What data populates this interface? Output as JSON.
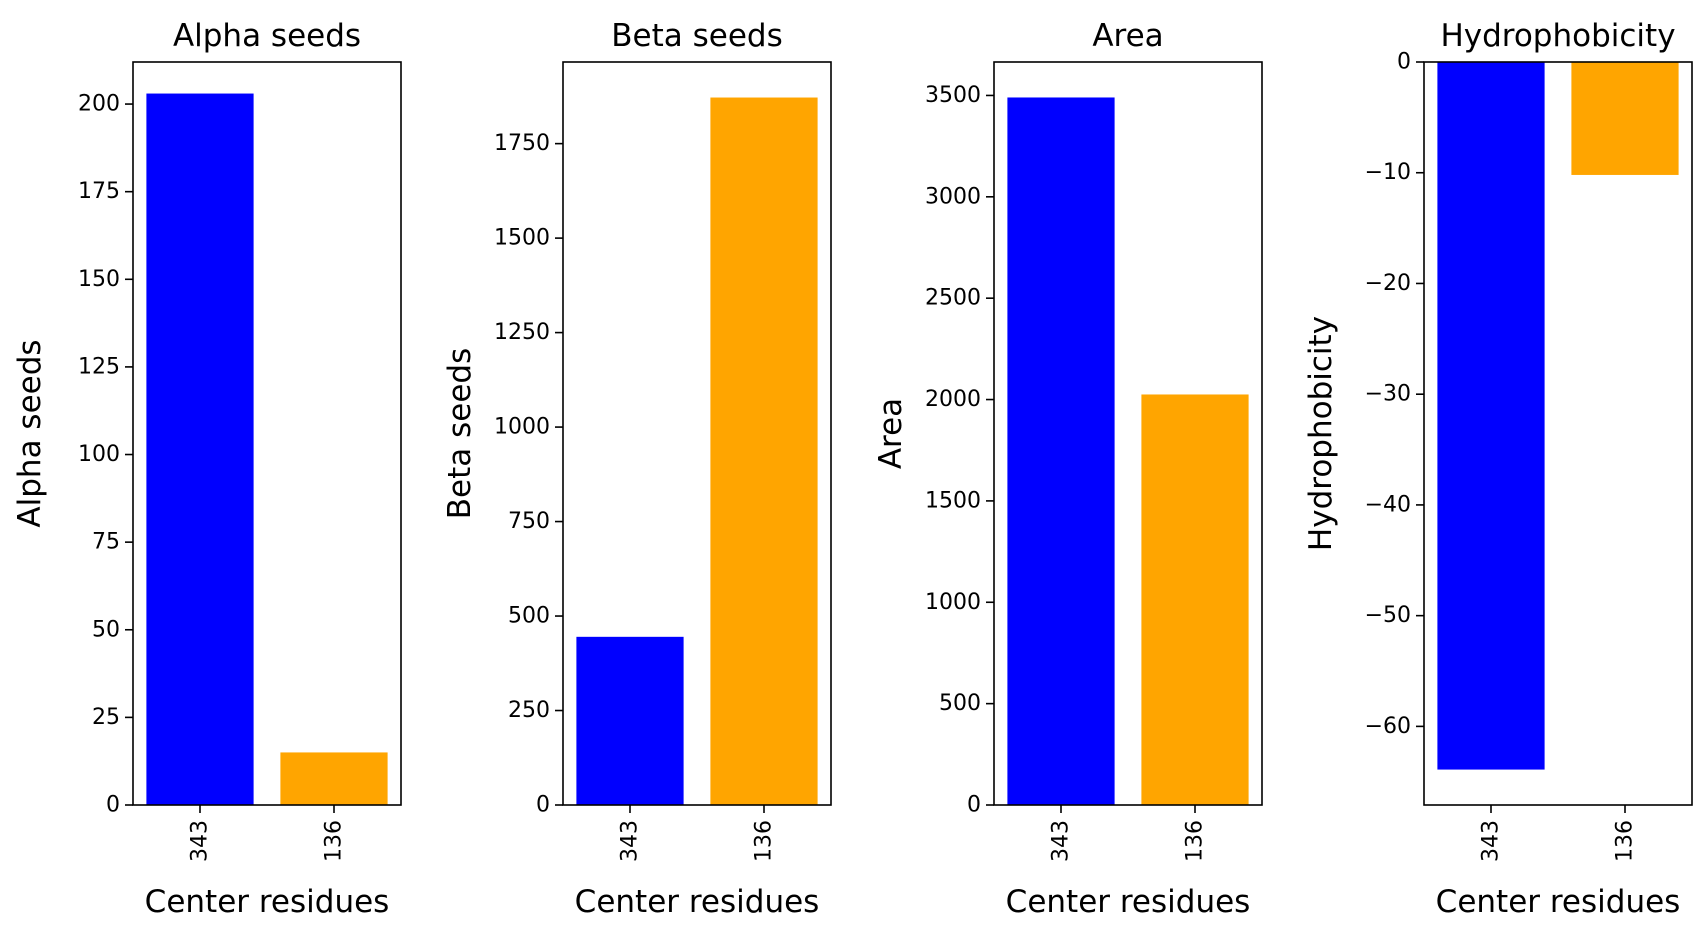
{
  "chart_data": [
    {
      "type": "bar",
      "title": "Alpha seeds",
      "xlabel": "Center residues",
      "ylabel": "Alpha seeds",
      "categories": [
        "343",
        "136"
      ],
      "values": [
        203,
        15
      ],
      "colors": [
        "#0000ff",
        "#ffa500"
      ],
      "ylim": [
        0,
        212
      ],
      "yticks": [
        0,
        25,
        50,
        75,
        100,
        125,
        150,
        175,
        200
      ],
      "yticklabels": [
        "0",
        "25",
        "50",
        "75",
        "100",
        "125",
        "150",
        "175",
        "200"
      ],
      "grid": false
    },
    {
      "type": "bar",
      "title": "Beta seeds",
      "xlabel": "Center residues",
      "ylabel": "Beta seeds",
      "categories": [
        "343",
        "136"
      ],
      "values": [
        445,
        1872
      ],
      "colors": [
        "#0000ff",
        "#ffa500"
      ],
      "ylim": [
        0,
        1966
      ],
      "yticks": [
        0,
        250,
        500,
        750,
        1000,
        1250,
        1500,
        1750
      ],
      "yticklabels": [
        "0",
        "250",
        "500",
        "750",
        "1000",
        "1250",
        "1500",
        "1750"
      ],
      "grid": false
    },
    {
      "type": "bar",
      "title": "Area",
      "xlabel": "Center residues",
      "ylabel": "Area",
      "categories": [
        "343",
        "136"
      ],
      "values": [
        3490,
        2025
      ],
      "colors": [
        "#0000ff",
        "#ffa500"
      ],
      "ylim": [
        0,
        3665
      ],
      "yticks": [
        0,
        500,
        1000,
        1500,
        2000,
        2500,
        3000,
        3500
      ],
      "yticklabels": [
        "0",
        "500",
        "1000",
        "1500",
        "2000",
        "2500",
        "3000",
        "3500"
      ],
      "grid": false
    },
    {
      "type": "bar",
      "title": "Hydrophobicity",
      "xlabel": "Center residues",
      "ylabel": "Hydrophobicity",
      "categories": [
        "343",
        "136"
      ],
      "values": [
        -63.9,
        -10.2
      ],
      "colors": [
        "#0000ff",
        "#ffa500"
      ],
      "ylim": [
        -67.1,
        0
      ],
      "yticks": [
        0,
        -10,
        -20,
        -30,
        -40,
        -50,
        -60
      ],
      "yticklabels": [
        "0",
        "−10",
        "−20",
        "−30",
        "−40",
        "−50",
        "−60"
      ],
      "grid": false
    }
  ]
}
